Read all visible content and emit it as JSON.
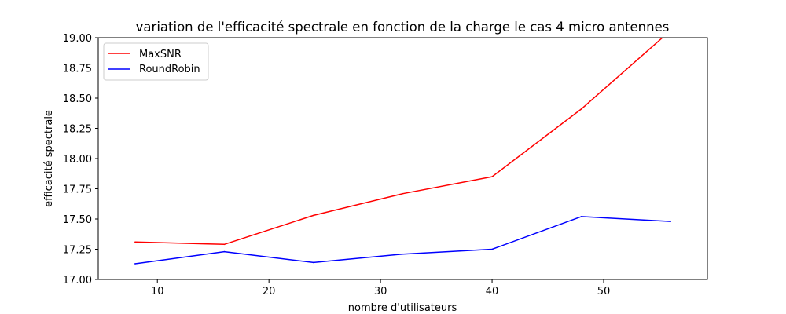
{
  "chart_data": {
    "type": "line",
    "title": "variation de l'efficacité spectrale en fonction de la charge le cas 4 micro antennes",
    "xlabel": "nombre d'utilisateurs",
    "ylabel": "efficacité spectrale",
    "x": [
      8,
      16,
      24,
      32,
      40,
      48,
      56
    ],
    "xlim": [
      4.7,
      59.3
    ],
    "ylim": [
      17.0,
      19.0
    ],
    "xticks": [
      "10",
      "20",
      "30",
      "40",
      "50"
    ],
    "xtick_values": [
      10,
      20,
      30,
      40,
      50
    ],
    "yticks": [
      "17.00",
      "17.25",
      "17.50",
      "17.75",
      "18.00",
      "18.25",
      "18.50",
      "18.75",
      "19.00"
    ],
    "ytick_values": [
      17.0,
      17.25,
      17.5,
      17.75,
      18.0,
      18.25,
      18.5,
      18.75,
      19.0
    ],
    "grid": false,
    "legend_position": "top-left",
    "series": [
      {
        "name": "MaxSNR",
        "color": "#ff0000",
        "values": [
          17.31,
          17.29,
          17.53,
          17.71,
          17.85,
          18.41,
          19.06
        ]
      },
      {
        "name": "RoundRobin",
        "color": "#0000ff",
        "values": [
          17.13,
          17.23,
          17.14,
          17.21,
          17.25,
          17.52,
          17.48
        ]
      }
    ]
  }
}
